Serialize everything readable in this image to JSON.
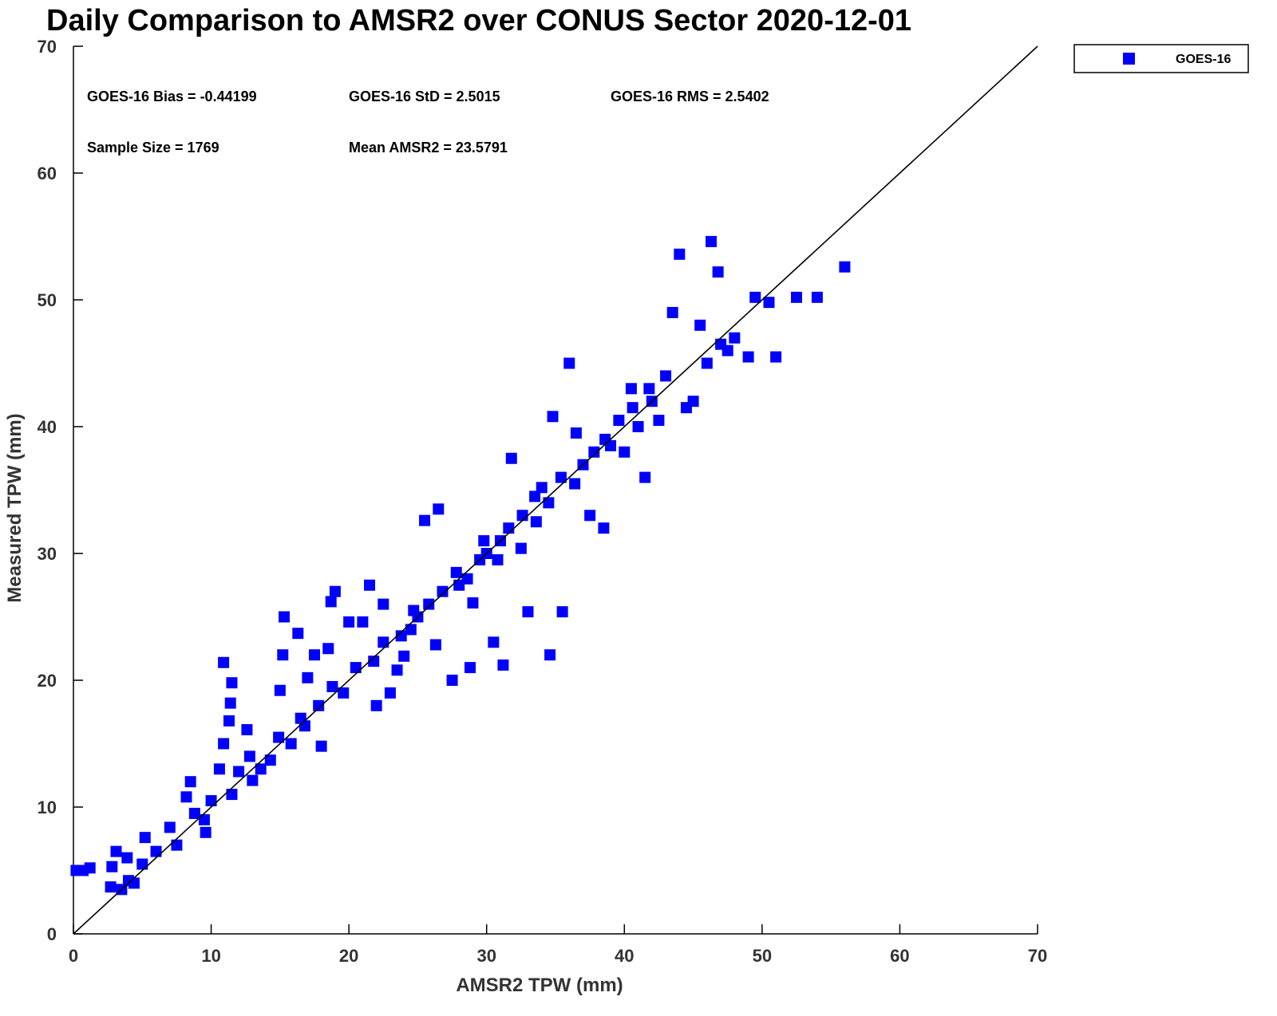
{
  "chart_data": {
    "type": "scatter",
    "title": "Daily Comparison to AMSR2 over CONUS Sector 2020-12-01",
    "xlabel": "AMSR2 TPW (mm)",
    "ylabel": "Measured TPW (mm)",
    "xlim": [
      0,
      70
    ],
    "ylim": [
      0,
      70
    ],
    "xticks": [
      0,
      10,
      20,
      30,
      40,
      50,
      60,
      70
    ],
    "yticks": [
      0,
      10,
      20,
      30,
      40,
      50,
      60,
      70
    ],
    "xtick_labels": [
      "0",
      "10",
      "20",
      "30",
      "40",
      "50",
      "60",
      "70"
    ],
    "ytick_labels": [
      "0",
      "10",
      "20",
      "30",
      "40",
      "50",
      "60",
      "70"
    ],
    "grid": false,
    "legend": {
      "position": "top-right-outside",
      "entries": [
        "GOES-16"
      ]
    },
    "reference_line": {
      "label": "1:1",
      "from": [
        0,
        0
      ],
      "to": [
        70,
        70
      ]
    },
    "series_color": "#0000ff",
    "stats": {
      "bias": "GOES-16 Bias = -0.44199",
      "std": "GOES-16 StD = 2.5015",
      "rms": "GOES-16 RMS = 2.5402",
      "sample_size": "Sample Size = 1769",
      "mean": "Mean AMSR2 = 23.5791"
    },
    "series": [
      {
        "name": "GOES-16",
        "points": [
          [
            0.2,
            5.0
          ],
          [
            0.7,
            5.0
          ],
          [
            1.2,
            5.2
          ],
          [
            2.7,
            3.7
          ],
          [
            3.5,
            3.5
          ],
          [
            4.4,
            4.0
          ],
          [
            2.8,
            5.3
          ],
          [
            3.1,
            6.5
          ],
          [
            3.9,
            6.0
          ],
          [
            5.2,
            7.6
          ],
          [
            7.0,
            8.4
          ],
          [
            8.2,
            10.8
          ],
          [
            8.5,
            12.0
          ],
          [
            9.6,
            8.0
          ],
          [
            10.6,
            13.0
          ],
          [
            10.9,
            15.0
          ],
          [
            11.3,
            16.8
          ],
          [
            10.9,
            21.4
          ],
          [
            11.5,
            19.8
          ],
          [
            11.4,
            18.2
          ],
          [
            12.6,
            16.1
          ],
          [
            12.0,
            12.8
          ],
          [
            13.0,
            12.1
          ],
          [
            14.3,
            13.7
          ],
          [
            15.0,
            19.2
          ],
          [
            15.2,
            22.0
          ],
          [
            15.3,
            25.0
          ],
          [
            16.3,
            23.7
          ],
          [
            16.8,
            16.4
          ],
          [
            17.0,
            20.2
          ],
          [
            17.5,
            22.0
          ],
          [
            18.0,
            14.8
          ],
          [
            18.5,
            22.5
          ],
          [
            18.7,
            26.2
          ],
          [
            19.0,
            27.0
          ],
          [
            20.0,
            24.6
          ],
          [
            21.0,
            24.6
          ],
          [
            21.5,
            27.5
          ],
          [
            22.0,
            18.0
          ],
          [
            22.5,
            26.0
          ],
          [
            23.0,
            19.0
          ],
          [
            23.5,
            20.8
          ],
          [
            24.0,
            21.9
          ],
          [
            24.5,
            24.0
          ],
          [
            25.0,
            25.0
          ],
          [
            25.5,
            32.6
          ],
          [
            26.5,
            33.5
          ],
          [
            26.3,
            22.8
          ],
          [
            27.5,
            20.0
          ],
          [
            28.0,
            27.5
          ],
          [
            28.8,
            21.0
          ],
          [
            29.0,
            26.1
          ],
          [
            29.5,
            29.5
          ],
          [
            30.0,
            30.0
          ],
          [
            30.5,
            23.0
          ],
          [
            31.0,
            31.0
          ],
          [
            31.2,
            21.2
          ],
          [
            31.8,
            37.5
          ],
          [
            32.5,
            30.4
          ],
          [
            33.0,
            25.4
          ],
          [
            33.5,
            34.5
          ],
          [
            34.0,
            35.2
          ],
          [
            34.6,
            22.0
          ],
          [
            34.8,
            40.8
          ],
          [
            35.5,
            25.4
          ],
          [
            36.0,
            45.0
          ],
          [
            36.5,
            39.5
          ],
          [
            37.0,
            37.0
          ],
          [
            37.5,
            33.0
          ],
          [
            38.5,
            32.0
          ],
          [
            39.0,
            38.5
          ],
          [
            40.0,
            38.0
          ],
          [
            40.5,
            43.0
          ],
          [
            41.0,
            40.0
          ],
          [
            41.5,
            36.0
          ],
          [
            42.0,
            42.0
          ],
          [
            43.0,
            44.0
          ],
          [
            43.5,
            49.0
          ],
          [
            44.0,
            53.6
          ],
          [
            44.5,
            41.5
          ],
          [
            45.0,
            42.0
          ],
          [
            45.5,
            48.0
          ],
          [
            46.0,
            45.0
          ],
          [
            46.3,
            54.6
          ],
          [
            46.8,
            52.2
          ],
          [
            47.0,
            46.5
          ],
          [
            47.5,
            46.0
          ],
          [
            48.0,
            47.0
          ],
          [
            49.0,
            45.5
          ],
          [
            49.5,
            50.2
          ],
          [
            50.5,
            49.8
          ],
          [
            51.0,
            45.5
          ],
          [
            52.5,
            50.2
          ],
          [
            54.0,
            50.2
          ],
          [
            56.0,
            52.6
          ],
          [
            4.0,
            4.2
          ],
          [
            5.0,
            5.5
          ],
          [
            6.0,
            6.5
          ],
          [
            7.5,
            7.0
          ],
          [
            8.8,
            9.5
          ],
          [
            9.5,
            9.0
          ],
          [
            10.0,
            10.5
          ],
          [
            11.5,
            11.0
          ],
          [
            12.8,
            14.0
          ],
          [
            13.6,
            13.0
          ],
          [
            14.9,
            15.5
          ],
          [
            15.8,
            15.0
          ],
          [
            16.5,
            17.0
          ],
          [
            17.8,
            18.0
          ],
          [
            18.8,
            19.5
          ],
          [
            19.6,
            19.0
          ],
          [
            20.5,
            21.0
          ],
          [
            21.8,
            21.5
          ],
          [
            22.5,
            23.0
          ],
          [
            23.8,
            23.5
          ],
          [
            24.7,
            25.5
          ],
          [
            25.8,
            26.0
          ],
          [
            26.8,
            27.0
          ],
          [
            27.8,
            28.5
          ],
          [
            28.6,
            28.0
          ],
          [
            29.8,
            31.0
          ],
          [
            30.8,
            29.5
          ],
          [
            31.6,
            32.0
          ],
          [
            32.6,
            33.0
          ],
          [
            33.6,
            32.5
          ],
          [
            34.5,
            34.0
          ],
          [
            35.4,
            36.0
          ],
          [
            36.4,
            35.5
          ],
          [
            37.8,
            38.0
          ],
          [
            38.6,
            39.0
          ],
          [
            39.6,
            40.5
          ],
          [
            40.6,
            41.5
          ],
          [
            41.8,
            43.0
          ],
          [
            42.5,
            40.5
          ]
        ]
      }
    ]
  }
}
